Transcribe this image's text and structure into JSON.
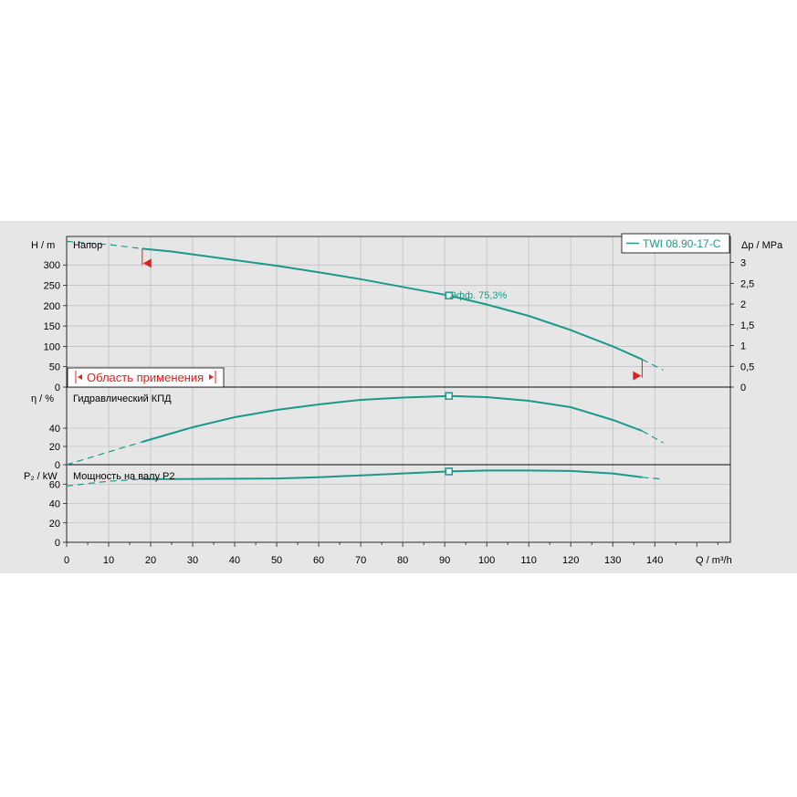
{
  "chart_data": {
    "type": "line",
    "legend": {
      "label": "TWI 08.90-17-C",
      "placement": "top-right"
    },
    "x_axis": {
      "label": "Q / m³/h",
      "ticks": [
        "0",
        "10",
        "20",
        "30",
        "40",
        "50",
        "60",
        "70",
        "80",
        "90",
        "100",
        "110",
        "120",
        "130",
        "140"
      ],
      "range": [
        0,
        158
      ]
    },
    "panels": [
      {
        "id": "head",
        "title": "Напор",
        "ylabel": "H / m",
        "ylim": [
          0,
          370
        ],
        "yticks": [
          "0",
          "50",
          "100",
          "150",
          "200",
          "250",
          "300"
        ],
        "y2label": "Δp / MPa",
        "y2ticks": [
          "0",
          "0,5",
          "1",
          "1,5",
          "2",
          "2,5",
          "3"
        ],
        "series": [
          {
            "x": [
              0,
              10,
              18,
              25,
              30,
              40,
              50,
              60,
              70,
              80,
              91,
              100,
              110,
              120,
              130,
              137,
              142
            ],
            "y": [
              358,
              350,
              340,
              333,
              326,
              312,
              298,
              282,
              265,
              246,
              225,
              203,
              175,
              140,
              100,
              68,
              42
            ]
          }
        ],
        "operating_range_label": "Область применения",
        "operating_range": [
          18,
          137
        ],
        "duty_point": {
          "x": 91,
          "y": 225,
          "label": "Эфф.  75,3%"
        }
      },
      {
        "id": "efficiency",
        "title": "Гидравлический КПД",
        "ylabel": "η / %",
        "ylim": [
          0,
          85
        ],
        "yticks": [
          "0",
          "20",
          "40"
        ],
        "series": [
          {
            "x": [
              0,
              10,
              18,
              30,
              40,
              50,
              60,
              70,
              80,
              91,
              100,
              110,
              120,
              130,
              137,
              142
            ],
            "y": [
              0,
              14,
              25,
              41,
              52,
              60,
              66,
              71,
              73.5,
              75.3,
              74,
              70,
              63,
              49,
              37,
              24
            ]
          }
        ],
        "duty_point": {
          "x": 91,
          "y": 75.3
        }
      },
      {
        "id": "power",
        "title": "Мощность на валу P2",
        "ylabel": "P₂ / kW",
        "ylim": [
          0,
          80
        ],
        "yticks": [
          "0",
          "20",
          "40",
          "60"
        ],
        "series": [
          {
            "x": [
              0,
              10,
              18,
              30,
              40,
              50,
              60,
              70,
              80,
              91,
              100,
              110,
              120,
              130,
              137,
              142
            ],
            "y": [
              58,
              63,
              65,
              65.3,
              65.5,
              65.8,
              67,
              69,
              71,
              73,
              74,
              74,
              73.5,
              71,
              67,
              65
            ]
          }
        ],
        "duty_point": {
          "x": 91,
          "y": 73
        }
      }
    ]
  }
}
